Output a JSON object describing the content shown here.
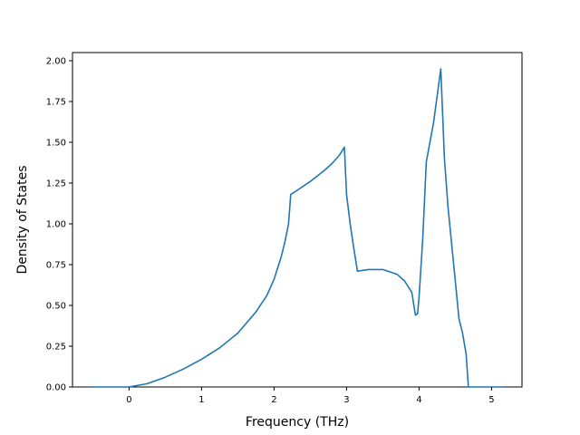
{
  "chart_data": {
    "type": "line",
    "title": "",
    "xlabel": "Frequency (THz)",
    "ylabel": "Density of States",
    "xlim": [
      -0.78,
      5.42
    ],
    "ylim": [
      0.0,
      2.05
    ],
    "xticks": [
      0,
      1,
      2,
      3,
      4,
      5
    ],
    "yticks": [
      0.0,
      0.25,
      0.5,
      0.75,
      1.0,
      1.25,
      1.5,
      1.75,
      2.0
    ],
    "xtick_labels": [
      "0",
      "1",
      "2",
      "3",
      "4",
      "5"
    ],
    "ytick_labels": [
      "0.00",
      "0.25",
      "0.50",
      "0.75",
      "1.00",
      "1.25",
      "1.50",
      "1.75",
      "2.00"
    ],
    "grid": false,
    "legend": "none",
    "series": [
      {
        "color": "#1f77b4",
        "x": [
          -0.5,
          0.0,
          0.25,
          0.5,
          0.75,
          1.0,
          1.25,
          1.5,
          1.75,
          1.9,
          2.0,
          2.1,
          2.15,
          2.2,
          2.23,
          2.3,
          2.5,
          2.7,
          2.8,
          2.9,
          2.97,
          3.0,
          3.05,
          3.1,
          3.15,
          3.3,
          3.5,
          3.7,
          3.8,
          3.9,
          3.95,
          3.98,
          4.0,
          4.05,
          4.1,
          4.15,
          4.2,
          4.3,
          4.35,
          4.4,
          4.5,
          4.55,
          4.6,
          4.65,
          4.68,
          5.15
        ],
        "y": [
          0.0,
          0.0,
          0.02,
          0.06,
          0.11,
          0.17,
          0.24,
          0.33,
          0.46,
          0.56,
          0.66,
          0.8,
          0.89,
          1.0,
          1.18,
          1.2,
          1.26,
          1.33,
          1.37,
          1.42,
          1.47,
          1.18,
          1.0,
          0.85,
          0.71,
          0.72,
          0.72,
          0.69,
          0.65,
          0.58,
          0.44,
          0.45,
          0.55,
          0.9,
          1.38,
          1.5,
          1.62,
          1.95,
          1.4,
          1.1,
          0.65,
          0.42,
          0.33,
          0.2,
          0.0,
          0.0
        ]
      }
    ]
  }
}
